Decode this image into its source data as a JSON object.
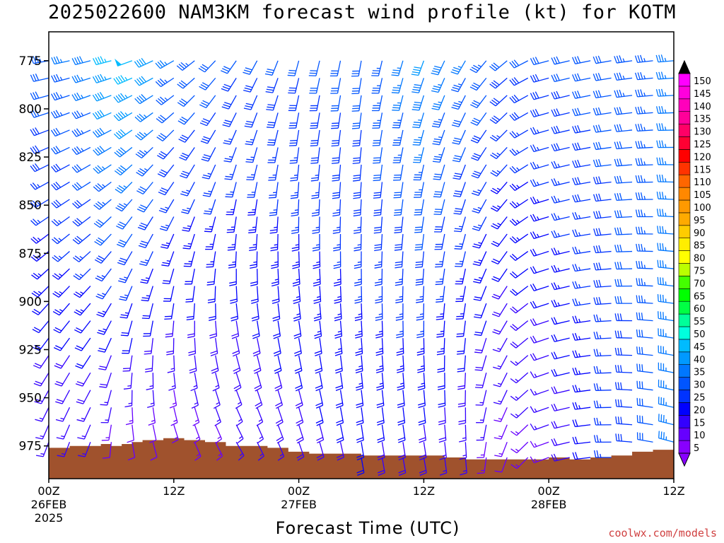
{
  "title": "2025022600 NAM3KM forecast wind profile (kt) for KOTM",
  "credit": "coolwx.com/models",
  "chart_data": {
    "type": "wind-barb-profile",
    "xlabel": "Forecast Time (UTC)",
    "ylabel": "",
    "ylim": [
      760,
      992
    ],
    "y_reversed": true,
    "xlim_hours": [
      0,
      60
    ],
    "x_ticks": [
      {
        "hour": 0,
        "label": "00Z",
        "date": "26FEB",
        "year": "2025"
      },
      {
        "hour": 12,
        "label": "12Z",
        "date": "",
        "year": ""
      },
      {
        "hour": 24,
        "label": "00Z",
        "date": "27FEB",
        "year": ""
      },
      {
        "hour": 36,
        "label": "12Z",
        "date": "",
        "year": ""
      },
      {
        "hour": 48,
        "label": "00Z",
        "date": "28FEB",
        "year": ""
      },
      {
        "hour": 60,
        "label": "12Z",
        "date": "",
        "year": ""
      }
    ],
    "y_ticks": [
      775,
      800,
      825,
      850,
      875,
      900,
      925,
      950,
      975
    ],
    "colorbar": {
      "levels": [
        5,
        10,
        15,
        20,
        25,
        30,
        35,
        40,
        45,
        50,
        55,
        60,
        65,
        70,
        75,
        80,
        85,
        90,
        95,
        100,
        105,
        110,
        115,
        120,
        125,
        130,
        135,
        140,
        145,
        150
      ],
      "colors": [
        "#8800ff",
        "#6600ff",
        "#3300ff",
        "#0000ff",
        "#0033ff",
        "#0055ff",
        "#0077ff",
        "#0099ff",
        "#00bbff",
        "#00ffdd",
        "#00ff99",
        "#00ff44",
        "#00ff00",
        "#44ff00",
        "#bbff00",
        "#ffff00",
        "#ffee00",
        "#ffcc00",
        "#ffaa00",
        "#ff9900",
        "#ff8800",
        "#ff6600",
        "#ff3300",
        "#ff0000",
        "#ff0033",
        "#ff0066",
        "#ff0099",
        "#ff00bb",
        "#ff00dd",
        "#ff00ff"
      ]
    },
    "surface_pressure": [
      {
        "hour": 0,
        "p": 976
      },
      {
        "hour": 2,
        "p": 975
      },
      {
        "hour": 5,
        "p": 974
      },
      {
        "hour": 6,
        "p": 975
      },
      {
        "hour": 7,
        "p": 974
      },
      {
        "hour": 8,
        "p": 973
      },
      {
        "hour": 9,
        "p": 972
      },
      {
        "hour": 11,
        "p": 971
      },
      {
        "hour": 13,
        "p": 972
      },
      {
        "hour": 15,
        "p": 973
      },
      {
        "hour": 17,
        "p": 975
      },
      {
        "hour": 21,
        "p": 976
      },
      {
        "hour": 23,
        "p": 978
      },
      {
        "hour": 25,
        "p": 979
      },
      {
        "hour": 30,
        "p": 980
      },
      {
        "hour": 36,
        "p": 980
      },
      {
        "hour": 38,
        "p": 981
      },
      {
        "hour": 40,
        "p": 982
      },
      {
        "hour": 46,
        "p": 982
      },
      {
        "hour": 48,
        "p": 981
      },
      {
        "hour": 50,
        "p": 982
      },
      {
        "hour": 52,
        "p": 981
      },
      {
        "hour": 54,
        "p": 980
      },
      {
        "hour": 56,
        "p": 978
      },
      {
        "hour": 58,
        "p": 977
      },
      {
        "hour": 60,
        "p": 976
      }
    ],
    "levels_hpa": [
      775,
      784,
      793,
      802,
      811,
      820,
      829,
      838,
      847,
      856,
      865,
      874,
      883,
      892,
      901,
      910,
      919,
      928,
      937,
      946,
      955,
      964,
      973,
      981
    ],
    "phases": [
      {
        "hour": 0,
        "dir_low": 200,
        "spd_low": 15,
        "dir_high": 260,
        "spd_high": 33
      },
      {
        "hour": 4,
        "dir_low": 200,
        "spd_low": 15,
        "dir_high": 255,
        "spd_high": 38
      },
      {
        "hour": 6,
        "dir_low": 185,
        "spd_low": 12,
        "dir_high": 255,
        "spd_high": 45
      },
      {
        "hour": 8,
        "dir_low": 170,
        "spd_low": 10,
        "dir_high": 250,
        "spd_high": 48
      },
      {
        "hour": 12,
        "dir_low": 160,
        "spd_low": 12,
        "dir_high": 240,
        "spd_high": 35
      },
      {
        "hour": 18,
        "dir_low": 150,
        "spd_low": 15,
        "dir_high": 215,
        "spd_high": 30
      },
      {
        "hour": 24,
        "dir_low": 160,
        "spd_low": 18,
        "dir_high": 195,
        "spd_high": 30
      },
      {
        "hour": 30,
        "dir_low": 170,
        "spd_low": 20,
        "dir_high": 190,
        "spd_high": 32
      },
      {
        "hour": 36,
        "dir_low": 170,
        "spd_low": 18,
        "dir_high": 200,
        "spd_high": 40
      },
      {
        "hour": 40,
        "dir_low": 175,
        "spd_low": 15,
        "dir_high": 210,
        "spd_high": 35
      },
      {
        "hour": 44,
        "dir_low": 200,
        "spd_low": 12,
        "dir_high": 230,
        "spd_high": 30
      },
      {
        "hour": 48,
        "dir_low": 250,
        "spd_low": 14,
        "dir_high": 255,
        "spd_high": 30
      },
      {
        "hour": 54,
        "dir_low": 270,
        "spd_low": 25,
        "dir_high": 260,
        "spd_high": 32
      },
      {
        "hour": 60,
        "dir_low": 285,
        "spd_low": 35,
        "dir_high": 265,
        "spd_high": 35
      }
    ]
  }
}
